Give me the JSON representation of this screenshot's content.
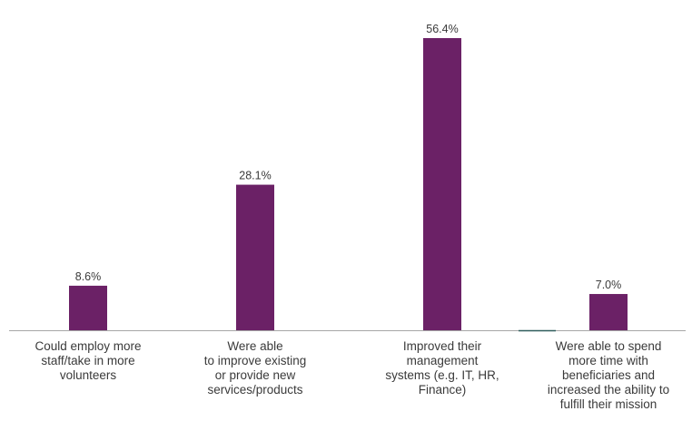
{
  "chart_data": {
    "type": "bar",
    "categories": [
      "Could employ more staff/take in more volunteers",
      "Were able to improve existing or provide new services/products",
      "Improved their management systems (e.g. IT, HR, Finance)",
      "Were able to spend more time with beneficiaries and increased the ability to fulfill their mission"
    ],
    "category_lines": [
      [
        "Could employ more",
        "staff/take in more",
        "volunteers"
      ],
      [
        "Were able",
        "to improve existing",
        "or provide new",
        "services/products"
      ],
      [
        "Improved their",
        "management",
        "systems (e.g. IT, HR,",
        "Finance)"
      ],
      [
        "Were able to spend",
        "more time with",
        "beneficiaries and",
        "increased the ability to",
        "fulfill their mission"
      ]
    ],
    "values": [
      8.6,
      28.1,
      56.4,
      7.0
    ],
    "data_labels": [
      "8.6%",
      "28.1%",
      "56.4%",
      "7.0%"
    ],
    "title": "",
    "xlabel": "",
    "ylabel": "",
    "ylim": [
      0,
      56.4
    ],
    "grid": false,
    "legend": "none",
    "colors": {
      "bar": "#6b2166",
      "axis": "#a6a6a6",
      "axis_segment": "#2f5d5b",
      "text": "#3a3a3a"
    }
  }
}
